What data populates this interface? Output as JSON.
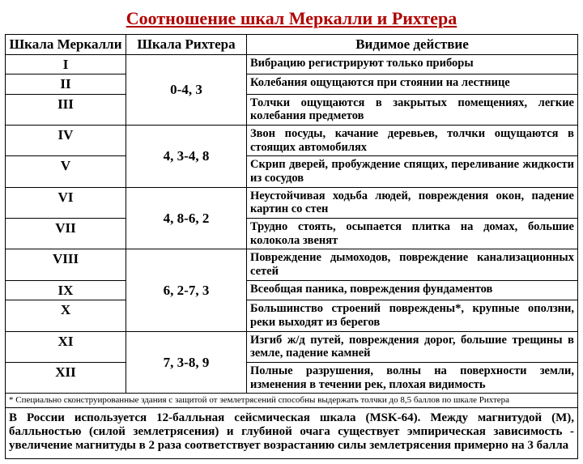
{
  "title": "Соотношение шкал Меркалли и Рихтера",
  "head": {
    "mer": "Шкала Меркалли",
    "rich": "Шкала Рихтера",
    "eff": "Видимое действие"
  },
  "mer": [
    "I",
    "II",
    "III",
    "IV",
    "V",
    "VI",
    "VII",
    "VIII",
    "IX",
    "X",
    "XI",
    "XII"
  ],
  "rich": [
    "0-4, 3",
    "4, 3-4, 8",
    "4, 8-6, 2",
    "6, 2-7, 3",
    "7, 3-8, 9"
  ],
  "eff": [
    "Вибрацию регистрируют только приборы",
    "Колебания ощущаются при стоянии на лестнице",
    "Толчки ощущаются в закрытых помещениях, легкие колебания предметов",
    "Звон посуды, качание деревьев, толчки ощущаются в стоящих автомобилях",
    "Скрип дверей, пробуждение спящих, переливание жидкости из сосудов",
    "Неустойчивая ходьба людей, повреждения окон, падение картин со стен",
    "Трудно стоять, осыпается плитка на домах, большие колокола звенят",
    "Повреждение дымоходов, повреждение канализационных сетей",
    "Всеобщая паника, повреждения фундаментов",
    "Большинство строений повреждены*, крупные оползни, реки выходят из берегов",
    "Изгиб ж/д путей, повреждения дорог, большие трещины в земле, падение камней",
    "Полные разрушения, волны на поверхности земли, изменения в течении рек, плохая видимость"
  ],
  "footnote": "* Специально сконструированные здания с защитой от землетрясений способны выдержать толчки до 8,5 баллов по шкале Рихтера",
  "bottom": "В России используется 12-балльная сейсмическая шкала (MSK-64). Между магнитудой (М), балльностью (силой землетрясения) и глубиной очага существует эмпирическая зависимость - увеличение магнитуды в 2 раза соответствует возрастанию силы землетрясения примерно на 3 балла"
}
